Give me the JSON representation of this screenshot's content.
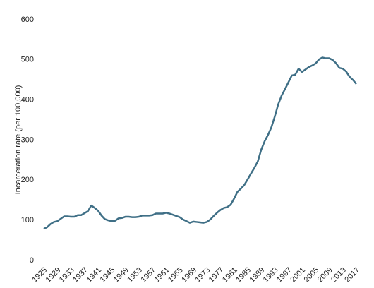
{
  "chart_data": {
    "type": "line",
    "y_label": "Incarceration rate (per 100,000)",
    "x": [
      1925,
      1926,
      1927,
      1928,
      1929,
      1930,
      1931,
      1932,
      1933,
      1934,
      1935,
      1936,
      1937,
      1938,
      1939,
      1940,
      1941,
      1942,
      1943,
      1944,
      1945,
      1946,
      1947,
      1948,
      1949,
      1950,
      1951,
      1952,
      1953,
      1954,
      1955,
      1956,
      1957,
      1958,
      1959,
      1960,
      1961,
      1962,
      1963,
      1964,
      1965,
      1966,
      1967,
      1968,
      1969,
      1970,
      1971,
      1972,
      1973,
      1974,
      1975,
      1976,
      1977,
      1978,
      1979,
      1980,
      1981,
      1982,
      1983,
      1984,
      1985,
      1986,
      1987,
      1988,
      1989,
      1990,
      1991,
      1992,
      1993,
      1994,
      1995,
      1996,
      1997,
      1998,
      1999,
      2000,
      2001,
      2002,
      2003,
      2004,
      2005,
      2006,
      2007,
      2008,
      2009,
      2010,
      2011,
      2012,
      2013,
      2014,
      2015,
      2016,
      2017
    ],
    "values": [
      79,
      83,
      91,
      96,
      98,
      104,
      110,
      110,
      109,
      109,
      113,
      113,
      118,
      123,
      137,
      131,
      124,
      112,
      103,
      100,
      98,
      99,
      105,
      106,
      109,
      109,
      108,
      108,
      109,
      112,
      112,
      112,
      113,
      117,
      117,
      117,
      119,
      117,
      114,
      111,
      108,
      102,
      98,
      94,
      97,
      96,
      95,
      94,
      96,
      102,
      111,
      119,
      126,
      131,
      133,
      139,
      154,
      171,
      179,
      188,
      202,
      217,
      231,
      247,
      276,
      297,
      313,
      332,
      359,
      389,
      411,
      427,
      444,
      461,
      463,
      478,
      470,
      476,
      482,
      486,
      491,
      501,
      506,
      504,
      504,
      500,
      492,
      480,
      478,
      471,
      458,
      450,
      440
    ],
    "color": "#3f6f86",
    "xlim": [
      1925,
      2017
    ],
    "xticks": [
      1925,
      1929,
      1933,
      1937,
      1941,
      1945,
      1949,
      1953,
      1957,
      1961,
      1965,
      1969,
      1973,
      1977,
      1981,
      1985,
      1989,
      1993,
      1997,
      2001,
      2005,
      2009,
      2013,
      2017
    ],
    "ylim": [
      0,
      600
    ],
    "yticks": [
      0,
      100,
      200,
      300,
      400,
      500,
      600
    ],
    "grid": false
  }
}
